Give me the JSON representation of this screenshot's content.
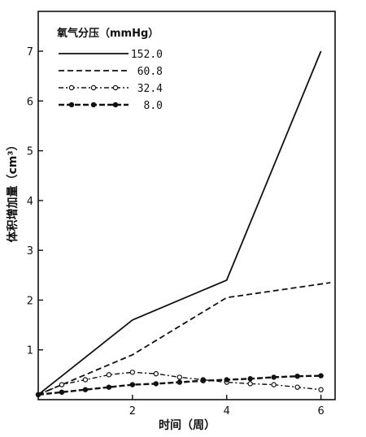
{
  "chart_data": {
    "type": "line",
    "xlabel": "时间（周）",
    "ylabel": "体积增加量（cm³）",
    "xlim": [
      0,
      6.3
    ],
    "ylim": [
      0,
      7.8
    ],
    "x_ticks": [
      2,
      4,
      6
    ],
    "y_ticks": [
      1,
      2,
      3,
      4,
      5,
      6,
      7
    ],
    "grid": false,
    "legend": {
      "title": "氧气分压（mmHg）",
      "placement": "top-left"
    },
    "series": [
      {
        "name": "152.0",
        "style": "solid",
        "marker": "none",
        "points": [
          [
            0,
            0.1
          ],
          [
            2,
            1.6
          ],
          [
            4,
            2.4
          ],
          [
            6,
            7.0
          ]
        ]
      },
      {
        "name": "60.8",
        "style": "dashed",
        "marker": "none",
        "points": [
          [
            0,
            0.1
          ],
          [
            2,
            0.9
          ],
          [
            4,
            2.05
          ],
          [
            6.2,
            2.35
          ]
        ]
      },
      {
        "name": "32.4",
        "style": "dash-dot",
        "marker": "open-circle",
        "points": [
          [
            0,
            0.1
          ],
          [
            0.5,
            0.3
          ],
          [
            1,
            0.4
          ],
          [
            1.5,
            0.5
          ],
          [
            2,
            0.55
          ],
          [
            2.5,
            0.52
          ],
          [
            3,
            0.45
          ],
          [
            3.5,
            0.4
          ],
          [
            4,
            0.35
          ],
          [
            4.5,
            0.32
          ],
          [
            5,
            0.3
          ],
          [
            5.5,
            0.25
          ],
          [
            6,
            0.2
          ]
        ]
      },
      {
        "name": "8.0",
        "style": "thick-dashed",
        "marker": "filled-circle",
        "points": [
          [
            0,
            0.1
          ],
          [
            0.5,
            0.15
          ],
          [
            1,
            0.2
          ],
          [
            1.5,
            0.25
          ],
          [
            2,
            0.3
          ],
          [
            2.5,
            0.32
          ],
          [
            3,
            0.35
          ],
          [
            3.5,
            0.38
          ],
          [
            4,
            0.4
          ],
          [
            4.5,
            0.42
          ],
          [
            5,
            0.45
          ],
          [
            5.5,
            0.47
          ],
          [
            6,
            0.48
          ]
        ]
      }
    ]
  }
}
